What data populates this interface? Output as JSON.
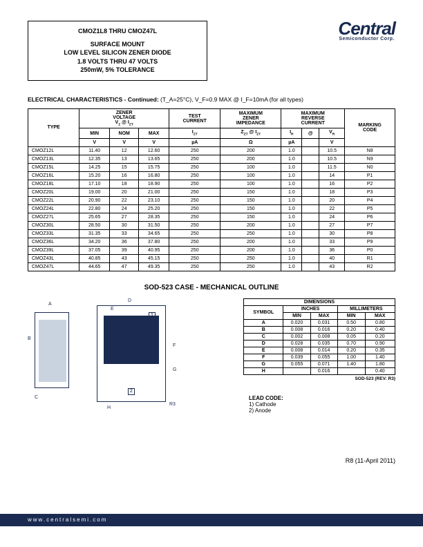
{
  "logo": {
    "brand": "Central",
    "sub": "Semiconductor Corp."
  },
  "title": {
    "line1": "CMOZ1L8 THRU CMOZ47L",
    "line2": "SURFACE MOUNT",
    "line3": "LOW LEVEL SILICON ZENER DIODE",
    "line4": "1.8 VOLTS THRU 47 VOLTS",
    "line5": "250mW, 5% TOLERANCE"
  },
  "elecHeading": "ELECTRICAL CHARACTERISTICS - Continued:",
  "elecCond": " (T_A=25°C), V_F=0.9 MAX @ I_F=10mA (for all types)",
  "tableHeaders": {
    "type": "TYPE",
    "zener": "ZENER VOLTAGE V_Z @ I_ZT",
    "min": "MIN",
    "nom": "NOM",
    "max": "MAX",
    "test": "TEST CURRENT",
    "izt": "I_ZT",
    "imp": "MAXIMUM ZENER IMPEDANCE",
    "zzt": "Z_ZT @ I_ZT",
    "rev": "MAXIMUM REVERSE CURRENT",
    "ir": "I_R",
    "at": "@",
    "vr": "V_R",
    "mark": "MARKING CODE",
    "unitV": "V",
    "unitUA": "µA",
    "unitOhm": "Ω"
  },
  "rows": [
    {
      "type": "CMOZ12L",
      "min": "11.40",
      "nom": "12",
      "max": "12.60",
      "izt": "250",
      "zzt": "200",
      "ir": "1.0",
      "vr": "10.5",
      "mark": "N8"
    },
    {
      "type": "CMOZ13L",
      "min": "12.35",
      "nom": "13",
      "max": "13.65",
      "izt": "250",
      "zzt": "200",
      "ir": "1.0",
      "vr": "10.5",
      "mark": "N9"
    },
    {
      "type": "CMOZ15L",
      "min": "14.25",
      "nom": "15",
      "max": "15.75",
      "izt": "250",
      "zzt": "100",
      "ir": "1.0",
      "vr": "11.5",
      "mark": "N0"
    },
    {
      "type": "CMOZ16L",
      "min": "15.20",
      "nom": "16",
      "max": "16.80",
      "izt": "250",
      "zzt": "100",
      "ir": "1.0",
      "vr": "14",
      "mark": "P1"
    },
    {
      "type": "CMOZ18L",
      "min": "17.10",
      "nom": "18",
      "max": "18.90",
      "izt": "250",
      "zzt": "100",
      "ir": "1.0",
      "vr": "16",
      "mark": "P2"
    },
    {
      "type": "CMOZ20L",
      "min": "19.00",
      "nom": "20",
      "max": "21.00",
      "izt": "250",
      "zzt": "150",
      "ir": "1.0",
      "vr": "18",
      "mark": "P3"
    },
    {
      "type": "CMOZ22L",
      "min": "20.90",
      "nom": "22",
      "max": "23.10",
      "izt": "250",
      "zzt": "150",
      "ir": "1.0",
      "vr": "20",
      "mark": "P4"
    },
    {
      "type": "CMOZ24L",
      "min": "22.80",
      "nom": "24",
      "max": "25.20",
      "izt": "250",
      "zzt": "150",
      "ir": "1.0",
      "vr": "22",
      "mark": "P5"
    },
    {
      "type": "CMOZ27L",
      "min": "25.65",
      "nom": "27",
      "max": "28.35",
      "izt": "250",
      "zzt": "150",
      "ir": "1.0",
      "vr": "24",
      "mark": "P6"
    },
    {
      "type": "CMOZ30L",
      "min": "28.50",
      "nom": "30",
      "max": "31.50",
      "izt": "250",
      "zzt": "200",
      "ir": "1.0",
      "vr": "27",
      "mark": "P7"
    },
    {
      "type": "CMOZ33L",
      "min": "31.35",
      "nom": "33",
      "max": "34.65",
      "izt": "250",
      "zzt": "250",
      "ir": "1.0",
      "vr": "30",
      "mark": "P8"
    },
    {
      "type": "CMOZ36L",
      "min": "34.20",
      "nom": "36",
      "max": "37.80",
      "izt": "250",
      "zzt": "200",
      "ir": "1.0",
      "vr": "33",
      "mark": "P9"
    },
    {
      "type": "CMOZ39L",
      "min": "37.05",
      "nom": "39",
      "max": "40.95",
      "izt": "250",
      "zzt": "200",
      "ir": "1.0",
      "vr": "36",
      "mark": "P0"
    },
    {
      "type": "CMOZ43L",
      "min": "40.85",
      "nom": "43",
      "max": "45.15",
      "izt": "250",
      "zzt": "250",
      "ir": "1.0",
      "vr": "40",
      "mark": "R1"
    },
    {
      "type": "CMOZ47L",
      "min": "44.65",
      "nom": "47",
      "max": "49.35",
      "izt": "250",
      "zzt": "250",
      "ir": "1.0",
      "vr": "43",
      "mark": "R2"
    }
  ],
  "mechTitle": "SOD-523 CASE - MECHANICAL OUTLINE",
  "dimsHeader": {
    "title": "DIMENSIONS",
    "inches": "INCHES",
    "mm": "MILLIMETERS",
    "sym": "SYMBOL",
    "min": "MIN",
    "max": "MAX"
  },
  "dims": [
    {
      "s": "A",
      "imin": "0.020",
      "imax": "0.031",
      "mmin": "0.50",
      "mmax": "0.80"
    },
    {
      "s": "B",
      "imin": "0.008",
      "imax": "0.016",
      "mmin": "0.20",
      "mmax": "0.40"
    },
    {
      "s": "C",
      "imin": "0.002",
      "imax": "0.008",
      "mmin": "0.05",
      "mmax": "0.20"
    },
    {
      "s": "D",
      "imin": "0.028",
      "imax": "0.035",
      "mmin": "0.70",
      "mmax": "0.90"
    },
    {
      "s": "E",
      "imin": "0.008",
      "imax": "0.014",
      "mmin": "0.20",
      "mmax": "0.35"
    },
    {
      "s": "F",
      "imin": "0.039",
      "imax": "0.055",
      "mmin": "1.00",
      "mmax": "1.40"
    },
    {
      "s": "G",
      "imin": "0.055",
      "imax": "0.071",
      "mmin": "1.40",
      "mmax": "1.80"
    },
    {
      "s": "H",
      "imin": "",
      "imax": "0.016",
      "mmin": "",
      "mmax": "0.40"
    }
  ],
  "dimsCaption": "SOD-523 (REV: R3)",
  "leadCode": {
    "title": "LEAD CODE:",
    "l1": "1) Cathode",
    "l2": "2) Anode"
  },
  "rev": "R8 (11-April 2011)",
  "footer": "www.centralsemi.com",
  "drawingLabels": {
    "A": "A",
    "B": "B",
    "C": "C",
    "D": "D",
    "E": "E",
    "F": "F",
    "G": "G",
    "H": "H",
    "R3": "R3",
    "p1": "1",
    "p2": "2"
  }
}
